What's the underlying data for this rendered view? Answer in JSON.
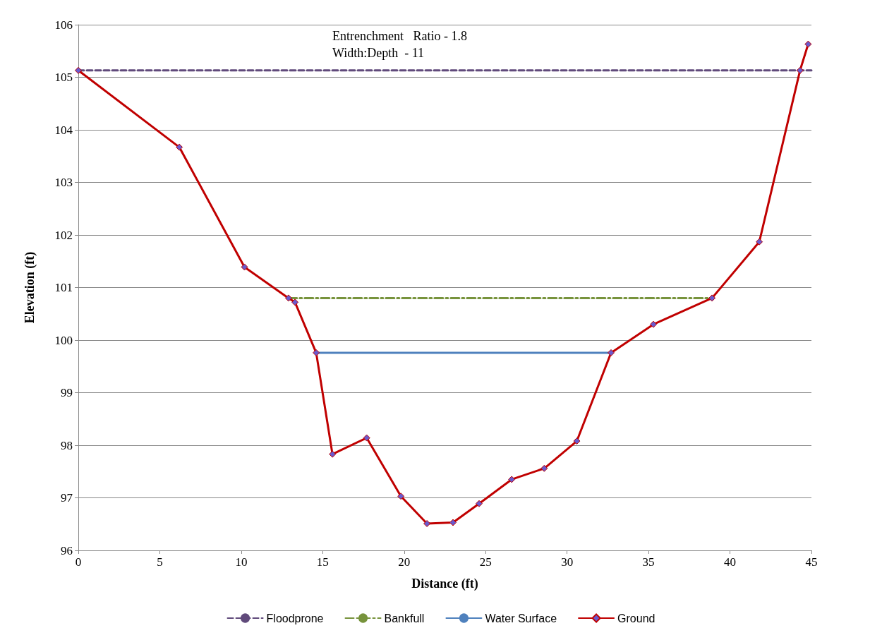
{
  "chart_data": {
    "type": "line",
    "xlabel": "Distance (ft)",
    "ylabel": "Elevation (ft)",
    "annotations": [
      "Entrenchment   Ratio - 1.8",
      "Width:Depth  - 11"
    ],
    "xlim": [
      0,
      45
    ],
    "xticks": [
      0,
      5,
      10,
      15,
      20,
      25,
      30,
      35,
      40,
      45
    ],
    "ylim": [
      96,
      106
    ],
    "yticks": [
      96,
      97,
      98,
      99,
      100,
      101,
      102,
      103,
      104,
      105,
      106
    ],
    "grid": "y",
    "legend": "bottom",
    "series": [
      {
        "name": "Floodprone",
        "color": "#604a7b",
        "line_style": "dashed",
        "marker": "none",
        "x": [
          0,
          45
        ],
        "values": [
          105.13,
          105.13
        ]
      },
      {
        "name": "Bankfull",
        "color": "#77933c",
        "line_style": "dashdot",
        "marker": "none",
        "x": [
          12.9,
          38.9
        ],
        "values": [
          100.8,
          100.8
        ]
      },
      {
        "name": "Water Surface",
        "color": "#4f81bd",
        "line_style": "solid",
        "marker": "none",
        "x": [
          14.6,
          32.7
        ],
        "values": [
          99.76,
          99.76
        ]
      },
      {
        "name": "Ground",
        "color": "#c00000",
        "line_style": "solid",
        "marker": "diamond",
        "x": [
          0,
          6.2,
          10.2,
          12.9,
          13.3,
          14.6,
          15.6,
          17.7,
          19.8,
          21.4,
          23.0,
          24.6,
          26.6,
          28.6,
          30.6,
          32.7,
          35.3,
          38.9,
          41.8,
          44.3,
          44.8
        ],
        "values": [
          105.13,
          103.67,
          101.39,
          100.8,
          100.72,
          99.76,
          97.83,
          98.14,
          97.03,
          96.51,
          96.53,
          96.89,
          97.35,
          97.56,
          98.08,
          99.76,
          100.3,
          100.8,
          101.87,
          105.13,
          105.63
        ]
      }
    ]
  }
}
